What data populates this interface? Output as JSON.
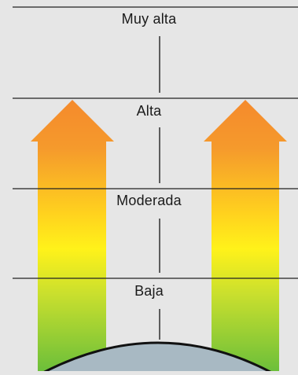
{
  "levels": [
    {
      "id": "muy-alta",
      "label": "Muy alta"
    },
    {
      "id": "alta",
      "label": "Alta"
    },
    {
      "id": "moderada",
      "label": "Moderada"
    },
    {
      "id": "baja",
      "label": "Baja"
    }
  ],
  "colors": {
    "background": "#e6e6e6",
    "line": "#222222",
    "arrow_top": "#f58a2c",
    "arrow_mid": "#fff21a",
    "arrow_bottom": "#6cbf3a",
    "earth": "#a8b9c3"
  }
}
